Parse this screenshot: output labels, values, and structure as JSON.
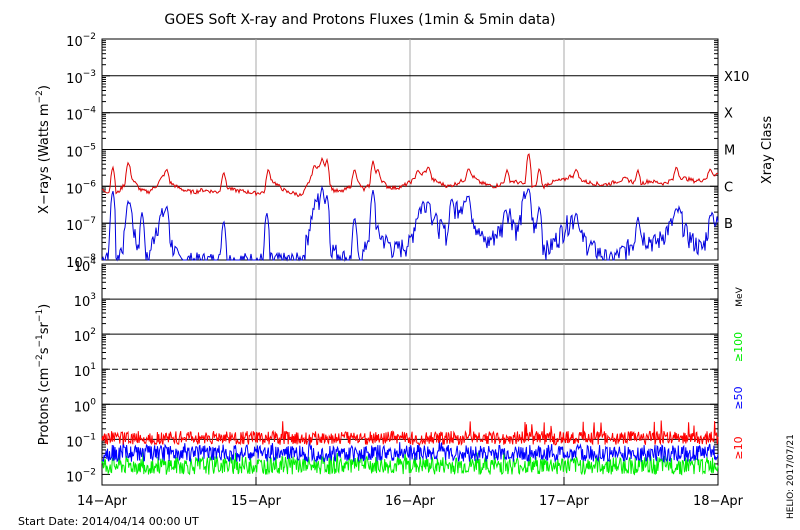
{
  "title": "GOES Soft X-ray and Protons Fluxes   (1min & 5min data)",
  "footer": {
    "start_date": "Start Date: 2014/04/14 00:00 UT",
    "credit": "HELIO: 2017/07/21"
  },
  "colors": {
    "xray_long": "#dd0000",
    "xray_short": "#0000dd",
    "proton_10": "#ff0000",
    "proton_50": "#0000ff",
    "proton_100": "#00ee00",
    "grid": "#000000",
    "day_line": "#aaaaaa"
  },
  "chart_data": [
    {
      "type": "line",
      "panel": "xray",
      "ylabel_parts": [
        "X−rays (Watts m",
        "−2",
        ")"
      ],
      "yscale": "log",
      "ylim": [
        1e-08,
        0.01
      ],
      "ytick_labels": [
        {
          "mant": "10",
          "exp": "−2"
        },
        {
          "mant": "10",
          "exp": "−3"
        },
        {
          "mant": "10",
          "exp": "−4"
        },
        {
          "mant": "10",
          "exp": "−5"
        },
        {
          "mant": "10",
          "exp": "−6"
        },
        {
          "mant": "10",
          "exp": "−7"
        },
        {
          "mant": "10",
          "exp": "−8"
        }
      ],
      "ytick_exponents": [
        -2,
        -3,
        -4,
        -5,
        -6,
        -7,
        -8
      ],
      "right_label": "Xray Class",
      "classes": [
        {
          "label": "X10",
          "exp": -3
        },
        {
          "label": "X",
          "exp": -4
        },
        {
          "label": "M",
          "exp": -5
        },
        {
          "label": "C",
          "exp": -6
        },
        {
          "label": "B",
          "exp": -7
        }
      ],
      "grid_exponents": [
        -3,
        -4,
        -5,
        -6,
        -7
      ],
      "x_days": [
        0,
        1,
        2,
        3,
        4
      ],
      "series": [
        {
          "key": "long",
          "points": [
            [
              0.0,
              8e-07
            ],
            [
              0.05,
              7e-07
            ],
            [
              0.1,
              6.5e-07
            ],
            [
              0.15,
              1.2e-06
            ],
            [
              0.18,
              2.5e-06
            ],
            [
              0.2,
              1.5e-06
            ],
            [
              0.25,
              8e-07
            ],
            [
              0.3,
              7e-07
            ],
            [
              0.35,
              1e-06
            ],
            [
              0.4,
              2e-06
            ],
            [
              0.45,
              1.2e-06
            ],
            [
              0.5,
              9e-07
            ],
            [
              0.55,
              7.5e-07
            ],
            [
              0.6,
              7e-07
            ],
            [
              0.65,
              8e-07
            ],
            [
              0.7,
              7.5e-07
            ],
            [
              0.75,
              7e-07
            ],
            [
              0.8,
              1e-06
            ],
            [
              0.85,
              8e-07
            ],
            [
              0.9,
              7.5e-07
            ],
            [
              0.95,
              7e-07
            ],
            [
              1.0,
              6.5e-07
            ],
            [
              1.05,
              7e-07
            ],
            [
              1.1,
              1.5e-06
            ],
            [
              1.15,
              1e-06
            ],
            [
              1.2,
              7e-07
            ],
            [
              1.25,
              6.5e-07
            ],
            [
              1.3,
              5.5e-07
            ],
            [
              1.35,
              1.5e-06
            ],
            [
              1.4,
              3.5e-06
            ],
            [
              1.45,
              2e-06
            ],
            [
              1.5,
              8e-07
            ],
            [
              1.55,
              7e-07
            ],
            [
              1.6,
              9e-07
            ],
            [
              1.65,
              1.5e-06
            ],
            [
              1.7,
              8e-07
            ],
            [
              1.75,
              1.2e-06
            ],
            [
              1.8,
              1.8e-06
            ],
            [
              1.85,
              1e-06
            ],
            [
              1.9,
              9e-07
            ],
            [
              1.95,
              1e-06
            ],
            [
              2.0,
              1.3e-06
            ],
            [
              2.05,
              1.8e-06
            ],
            [
              2.1,
              2.5e-06
            ],
            [
              2.15,
              1.5e-06
            ],
            [
              2.2,
              1.2e-06
            ],
            [
              2.25,
              1e-06
            ],
            [
              2.3,
              1.2e-06
            ],
            [
              2.35,
              1.5e-06
            ],
            [
              2.4,
              2e-06
            ],
            [
              2.45,
              1.3e-06
            ],
            [
              2.5,
              1.1e-06
            ],
            [
              2.55,
              1e-06
            ],
            [
              2.6,
              1.2e-06
            ],
            [
              2.65,
              1.4e-06
            ],
            [
              2.7,
              1.3e-06
            ],
            [
              2.75,
              1.1e-06
            ],
            [
              2.8,
              1e-06
            ],
            [
              2.85,
              9e-07
            ],
            [
              2.9,
              1.2e-06
            ],
            [
              2.95,
              1.4e-06
            ],
            [
              3.0,
              1.5e-06
            ],
            [
              3.05,
              2e-06
            ],
            [
              3.1,
              1.6e-06
            ],
            [
              3.15,
              1.3e-06
            ],
            [
              3.2,
              1.2e-06
            ],
            [
              3.25,
              1.1e-06
            ],
            [
              3.3,
              1.2e-06
            ],
            [
              3.35,
              1.4e-06
            ],
            [
              3.4,
              1.6e-06
            ],
            [
              3.45,
              1.3e-06
            ],
            [
              3.5,
              1.2e-06
            ],
            [
              3.55,
              1.4e-06
            ],
            [
              3.6,
              1.3e-06
            ],
            [
              3.65,
              1.2e-06
            ],
            [
              3.7,
              1.5e-06
            ],
            [
              3.75,
              1.8e-06
            ],
            [
              3.8,
              1.6e-06
            ],
            [
              3.85,
              1.4e-06
            ],
            [
              3.9,
              1.5e-06
            ],
            [
              3.95,
              2e-06
            ],
            [
              4.0,
              2.2e-06
            ]
          ],
          "spikes": [
            [
              0.07,
              3.5e-06
            ],
            [
              0.17,
              4.5e-06
            ],
            [
              0.42,
              3e-06
            ],
            [
              0.79,
              2.5e-06
            ],
            [
              1.08,
              3e-06
            ],
            [
              1.38,
              3.8e-06
            ],
            [
              1.43,
              6e-06
            ],
            [
              1.46,
              5.5e-06
            ],
            [
              1.64,
              3e-06
            ],
            [
              1.76,
              5e-06
            ],
            [
              1.79,
              3e-06
            ],
            [
              2.05,
              2.8e-06
            ],
            [
              2.12,
              3.5e-06
            ],
            [
              2.38,
              3.2e-06
            ],
            [
              2.63,
              2.8e-06
            ],
            [
              2.77,
              8.5e-06
            ],
            [
              2.84,
              3.2e-06
            ],
            [
              3.08,
              3e-06
            ],
            [
              3.48,
              2.8e-06
            ],
            [
              3.73,
              3.5e-06
            ],
            [
              3.95,
              3e-06
            ]
          ]
        },
        {
          "key": "short",
          "points": [
            [
              0.0,
              1e-08
            ],
            [
              0.05,
              2e-08
            ],
            [
              0.1,
              1e-08
            ],
            [
              0.15,
              5e-08
            ],
            [
              0.18,
              4e-07
            ],
            [
              0.22,
              3e-08
            ],
            [
              0.3,
              1e-08
            ],
            [
              0.35,
              8e-08
            ],
            [
              0.4,
              2e-07
            ],
            [
              0.45,
              3e-08
            ],
            [
              0.5,
              1e-08
            ],
            [
              0.6,
              1e-08
            ],
            [
              0.7,
              1e-08
            ],
            [
              0.8,
              1e-08
            ],
            [
              0.9,
              1e-08
            ],
            [
              1.0,
              1e-08
            ],
            [
              1.1,
              1e-08
            ],
            [
              1.2,
              1e-08
            ],
            [
              1.3,
              1e-08
            ],
            [
              1.35,
              1e-07
            ],
            [
              1.4,
              5e-07
            ],
            [
              1.45,
              1e-07
            ],
            [
              1.5,
              2e-08
            ],
            [
              1.6,
              1e-08
            ],
            [
              1.7,
              1.5e-08
            ],
            [
              1.75,
              1e-07
            ],
            [
              1.8,
              5e-08
            ],
            [
              1.9,
              2e-08
            ],
            [
              2.0,
              3e-08
            ],
            [
              2.05,
              2e-07
            ],
            [
              2.1,
              4e-07
            ],
            [
              2.15,
              1.5e-07
            ],
            [
              2.2,
              8e-08
            ],
            [
              2.25,
              5e-08
            ],
            [
              2.3,
              3e-07
            ],
            [
              2.35,
              4e-07
            ],
            [
              2.4,
              2e-07
            ],
            [
              2.45,
              5e-08
            ],
            [
              2.5,
              3e-08
            ],
            [
              2.6,
              8e-08
            ],
            [
              2.65,
              2e-07
            ],
            [
              2.7,
              6e-08
            ],
            [
              2.75,
              8e-07
            ],
            [
              2.8,
              1e-07
            ],
            [
              2.85,
              3e-08
            ],
            [
              2.9,
              2e-08
            ],
            [
              3.0,
              8e-08
            ],
            [
              3.05,
              1.5e-07
            ],
            [
              3.1,
              5e-08
            ],
            [
              3.2,
              2e-08
            ],
            [
              3.3,
              1e-08
            ],
            [
              3.4,
              2e-08
            ],
            [
              3.5,
              5e-08
            ],
            [
              3.6,
              3e-08
            ],
            [
              3.7,
              1e-07
            ],
            [
              3.75,
              2e-07
            ],
            [
              3.8,
              5e-08
            ],
            [
              3.9,
              2e-08
            ],
            [
              3.95,
              1.2e-07
            ],
            [
              4.0,
              1e-07
            ]
          ],
          "spikes": [
            [
              0.07,
              8e-07
            ],
            [
              0.17,
              4e-07
            ],
            [
              0.26,
              2e-07
            ],
            [
              0.42,
              3e-07
            ],
            [
              0.79,
              1.2e-07
            ],
            [
              1.07,
              2e-07
            ],
            [
              1.38,
              2.5e-07
            ],
            [
              1.43,
              1e-06
            ],
            [
              1.46,
              6e-07
            ],
            [
              1.64,
              1.5e-07
            ],
            [
              1.76,
              8e-07
            ],
            [
              2.12,
              4e-07
            ],
            [
              2.27,
              5e-07
            ],
            [
              2.38,
              6e-07
            ],
            [
              2.62,
              2.5e-07
            ],
            [
              2.77,
              9e-07
            ],
            [
              2.84,
              3e-07
            ],
            [
              3.08,
              2e-07
            ],
            [
              3.48,
              1.5e-07
            ],
            [
              3.73,
              2.5e-07
            ],
            [
              3.96,
              2e-07
            ]
          ]
        }
      ]
    },
    {
      "type": "line",
      "panel": "protons",
      "ylabel_parts": [
        "Protons (cm",
        "−2",
        "s",
        "−1",
        "sr",
        "−1",
        ")"
      ],
      "yscale": "log",
      "ylim": [
        0.005,
        10000
      ],
      "ytick_labels": [
        {
          "mant": "10",
          "exp": "4"
        },
        {
          "mant": "10",
          "exp": "3"
        },
        {
          "mant": "10",
          "exp": "2"
        },
        {
          "mant": "10",
          "exp": "1"
        },
        {
          "mant": "10",
          "exp": "0"
        },
        {
          "mant": "10",
          "exp": "−1"
        },
        {
          "mant": "10",
          "exp": "−2"
        }
      ],
      "ytick_exponents": [
        4,
        3,
        2,
        1,
        0,
        -1,
        -2
      ],
      "grid_exponents": [
        3,
        2,
        0,
        -1
      ],
      "dashed_exponent": 1,
      "legend": [
        {
          "label": "MeV",
          "key": "unit"
        },
        {
          "label": "≥100",
          "key": "p100"
        },
        {
          "label": "≥50",
          "key": "p50"
        },
        {
          "label": "≥10",
          "key": "p10"
        }
      ],
      "x_days": [
        0,
        1,
        2,
        3,
        4
      ],
      "series": [
        {
          "key": "p10",
          "level": 0.11,
          "jitter": 0.45,
          "peak": 0.35
        },
        {
          "key": "p50",
          "level": 0.04,
          "jitter": 0.55,
          "peak": 0.1
        },
        {
          "key": "p100",
          "level": 0.018,
          "jitter": 0.6,
          "peak": 0.045
        }
      ]
    }
  ],
  "xaxis": {
    "tick_labels": [
      "14−Apr",
      "15−Apr",
      "16−Apr",
      "17−Apr",
      "18−Apr"
    ]
  }
}
